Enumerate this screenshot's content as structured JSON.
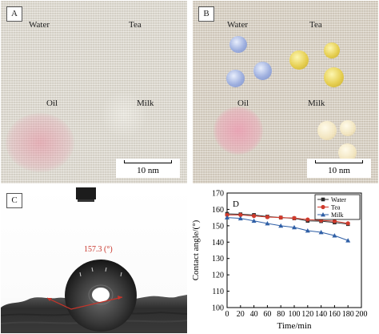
{
  "panel_a": {
    "tag": "A",
    "labels": {
      "water": "Water",
      "tea": "Tea",
      "oil": "Oil",
      "milk": "Milk"
    },
    "scale": "10 nm"
  },
  "panel_b": {
    "tag": "B",
    "labels": {
      "water": "Water",
      "tea": "Tea",
      "oil": "Oil",
      "milk": "Milk"
    },
    "scale": "10 nm"
  },
  "panel_c": {
    "tag": "C",
    "angle_label": "157.3 (°)"
  },
  "chart_data": {
    "type": "line",
    "panel_tag": "D",
    "xlabel": "Time/min",
    "ylabel": "Contact angle/(°)",
    "xlim": [
      0,
      200
    ],
    "ylim": [
      100,
      170
    ],
    "xticks": [
      "0",
      "20",
      "40",
      "60",
      "80",
      "100",
      "120",
      "140",
      "160",
      "180",
      "200"
    ],
    "yticks": [
      "100",
      "110",
      "120",
      "130",
      "140",
      "150",
      "160",
      "170"
    ],
    "legend_position": "top-right",
    "x": [
      0,
      20,
      40,
      60,
      80,
      100,
      120,
      140,
      160,
      180
    ],
    "series": [
      {
        "name": "Water",
        "marker": "square",
        "color": "#2a2a2a",
        "values": [
          157.3,
          157.0,
          156.6,
          155.6,
          155.0,
          154.5,
          153.0,
          152.8,
          152.0,
          151.0
        ]
      },
      {
        "name": "Tea",
        "marker": "circle",
        "color": "#d03a2c",
        "values": [
          156.6,
          156.6,
          156.0,
          155.3,
          155.0,
          154.7,
          153.8,
          153.3,
          152.8,
          151.5
        ]
      },
      {
        "name": "Milk",
        "marker": "triangle",
        "color": "#2f5fa6",
        "values": [
          155.0,
          154.5,
          153.0,
          151.4,
          150.0,
          149.0,
          147.0,
          146.0,
          144.0,
          141.0
        ]
      }
    ]
  }
}
